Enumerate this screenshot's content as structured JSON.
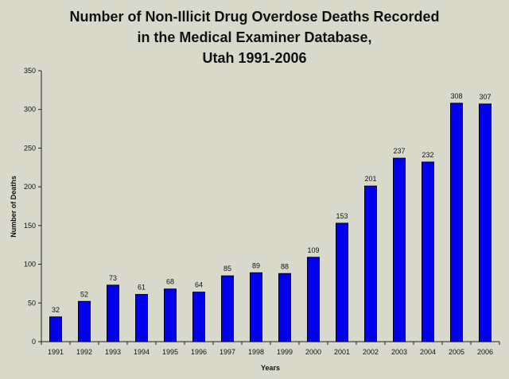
{
  "chart_data": {
    "type": "bar",
    "title_lines": [
      "Number of Non-Illicit Drug Overdose Deaths Recorded",
      "in the Medical Examiner Database,",
      "Utah 1991-2006"
    ],
    "xlabel": "Years",
    "ylabel": "Number of Deaths",
    "categories": [
      "1991",
      "1992",
      "1993",
      "1994",
      "1995",
      "1996",
      "1997",
      "1998",
      "1999",
      "2000",
      "2001",
      "2002",
      "2003",
      "2004",
      "2005",
      "2006"
    ],
    "values": [
      32,
      52,
      73,
      61,
      68,
      64,
      85,
      89,
      88,
      109,
      153,
      201,
      237,
      232,
      308,
      307
    ],
    "ylim": [
      0,
      350
    ],
    "yticks": [
      0,
      50,
      100,
      150,
      200,
      250,
      300,
      350
    ],
    "grid": false,
    "legend": "none",
    "bar_color": "#0000ee",
    "data_labels": true
  }
}
